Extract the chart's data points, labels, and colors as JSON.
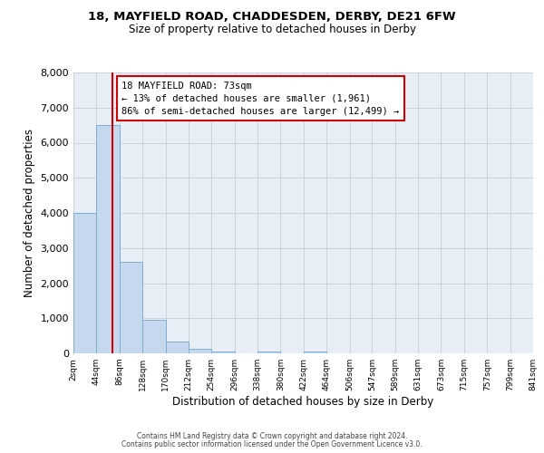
{
  "title1": "18, MAYFIELD ROAD, CHADDESDEN, DERBY, DE21 6FW",
  "title2": "Size of property relative to detached houses in Derby",
  "xlabel": "Distribution of detached houses by size in Derby",
  "ylabel": "Number of detached properties",
  "bin_edges": [
    2,
    44,
    86,
    128,
    170,
    212,
    254,
    296,
    338,
    380,
    422,
    464,
    506,
    547,
    589,
    631,
    673,
    715,
    757,
    799,
    841
  ],
  "bar_heights": [
    4000,
    6500,
    2600,
    950,
    330,
    120,
    60,
    0,
    60,
    0,
    60,
    0,
    0,
    0,
    0,
    0,
    0,
    0,
    0,
    0
  ],
  "bar_color": "#c5d8ee",
  "bar_edge_color": "#7bafd4",
  "property_size": 73,
  "vline_color": "#cc0000",
  "annotation_line1": "18 MAYFIELD ROAD: 73sqm",
  "annotation_line2": "← 13% of detached houses are smaller (1,961)",
  "annotation_line3": "86% of semi-detached houses are larger (12,499) →",
  "annotation_box_edgecolor": "#cc0000",
  "ylim_max": 8000,
  "yticks": [
    0,
    1000,
    2000,
    3000,
    4000,
    5000,
    6000,
    7000,
    8000
  ],
  "background_color": "#e8eef5",
  "grid_color": "#c0c8d4",
  "footer1": "Contains HM Land Registry data © Crown copyright and database right 2024.",
  "footer2": "Contains public sector information licensed under the Open Government Licence v3.0."
}
